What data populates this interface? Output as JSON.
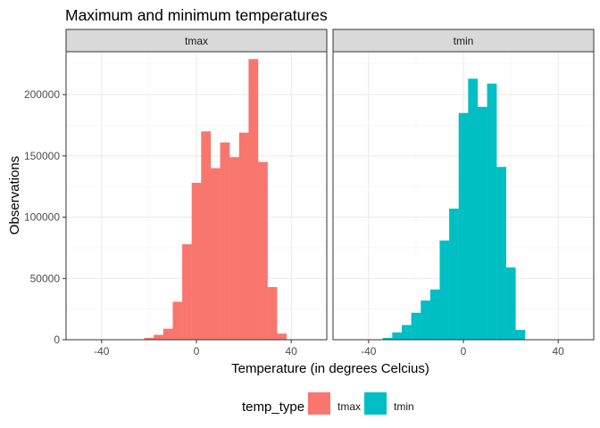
{
  "chart_data": {
    "type": "bar",
    "title": "Maximum and minimum temperatures",
    "xlabel": "Temperature (in degrees Celcius)",
    "ylabel": "Observations",
    "xlim": [
      -55,
      55
    ],
    "ylim": [
      0,
      235000
    ],
    "x_ticks": [
      -40,
      0,
      40
    ],
    "y_ticks": [
      0,
      50000,
      100000,
      150000,
      200000
    ],
    "bin_width": 4,
    "grid": true,
    "legend_position": "bottom",
    "legend_title": "temp_type",
    "panels": [
      {
        "name": "tmax",
        "color": "#F8766D",
        "bins": [
          {
            "x0": -22,
            "x1": -18,
            "value": 1500
          },
          {
            "x0": -18,
            "x1": -14,
            "value": 4000
          },
          {
            "x0": -14,
            "x1": -10,
            "value": 9000
          },
          {
            "x0": -10,
            "x1": -6,
            "value": 31000
          },
          {
            "x0": -6,
            "x1": -2,
            "value": 78000
          },
          {
            "x0": -2,
            "x1": 2,
            "value": 128000
          },
          {
            "x0": 2,
            "x1": 6,
            "value": 170000
          },
          {
            "x0": 6,
            "x1": 10,
            "value": 140000
          },
          {
            "x0": 10,
            "x1": 14,
            "value": 161000
          },
          {
            "x0": 14,
            "x1": 18,
            "value": 149000
          },
          {
            "x0": 18,
            "x1": 22,
            "value": 169000
          },
          {
            "x0": 22,
            "x1": 26,
            "value": 229000
          },
          {
            "x0": 26,
            "x1": 30,
            "value": 145000
          },
          {
            "x0": 30,
            "x1": 34,
            "value": 43000
          },
          {
            "x0": 34,
            "x1": 38,
            "value": 5000
          }
        ]
      },
      {
        "name": "tmin",
        "color": "#00BFC4",
        "bins": [
          {
            "x0": -34,
            "x1": -30,
            "value": 1500
          },
          {
            "x0": -30,
            "x1": -26,
            "value": 6000
          },
          {
            "x0": -26,
            "x1": -22,
            "value": 12000
          },
          {
            "x0": -22,
            "x1": -18,
            "value": 22000
          },
          {
            "x0": -18,
            "x1": -14,
            "value": 32000
          },
          {
            "x0": -14,
            "x1": -10,
            "value": 41000
          },
          {
            "x0": -10,
            "x1": -6,
            "value": 81000
          },
          {
            "x0": -6,
            "x1": -2,
            "value": 107000
          },
          {
            "x0": -2,
            "x1": 2,
            "value": 185000
          },
          {
            "x0": 2,
            "x1": 6,
            "value": 213000
          },
          {
            "x0": 6,
            "x1": 10,
            "value": 190000
          },
          {
            "x0": 10,
            "x1": 14,
            "value": 209000
          },
          {
            "x0": 14,
            "x1": 18,
            "value": 141000
          },
          {
            "x0": 18,
            "x1": 22,
            "value": 59000
          },
          {
            "x0": 22,
            "x1": 26,
            "value": 8000
          }
        ]
      }
    ]
  }
}
